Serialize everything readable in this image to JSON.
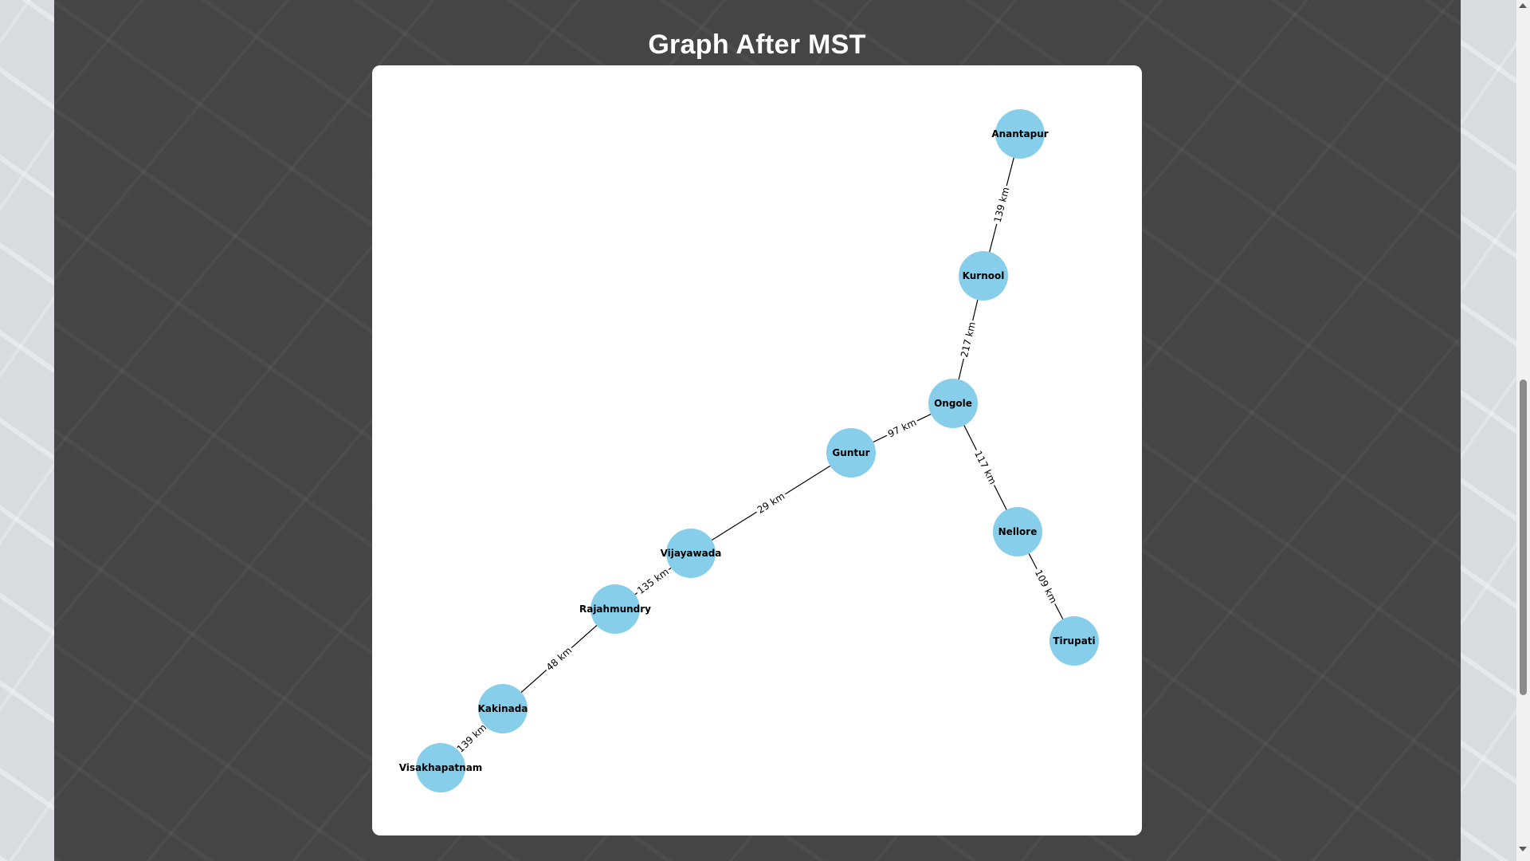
{
  "page": {
    "title": "Graph After MST"
  },
  "colors": {
    "node_fill": "#87ceeb",
    "edge_stroke": "#000000",
    "card_background": "#ffffff"
  },
  "chart_data": {
    "type": "graph",
    "nodes": [
      "Anantapur",
      "Kurnool",
      "Ongole",
      "Guntur",
      "Nellore",
      "Vijayawada",
      "Tirupati",
      "Rajahmundry",
      "Kakinada",
      "Visakhapatnam"
    ],
    "edges": [
      {
        "source": "Anantapur",
        "target": "Kurnool",
        "weight": 139,
        "label": "139 km"
      },
      {
        "source": "Kurnool",
        "target": "Ongole",
        "weight": 217,
        "label": "217 km"
      },
      {
        "source": "Ongole",
        "target": "Guntur",
        "weight": 97,
        "label": "97 km"
      },
      {
        "source": "Ongole",
        "target": "Nellore",
        "weight": 117,
        "label": "117 km"
      },
      {
        "source": "Nellore",
        "target": "Tirupati",
        "weight": 109,
        "label": "109 km"
      },
      {
        "source": "Guntur",
        "target": "Vijayawada",
        "weight": 29,
        "label": "29 km"
      },
      {
        "source": "Vijayawada",
        "target": "Rajahmundry",
        "weight": 135,
        "label": "135 km"
      },
      {
        "source": "Rajahmundry",
        "target": "Kakinada",
        "weight": 48,
        "label": "48 km"
      },
      {
        "source": "Kakinada",
        "target": "Visakhapatnam",
        "weight": 139,
        "label": "139 km"
      }
    ]
  }
}
